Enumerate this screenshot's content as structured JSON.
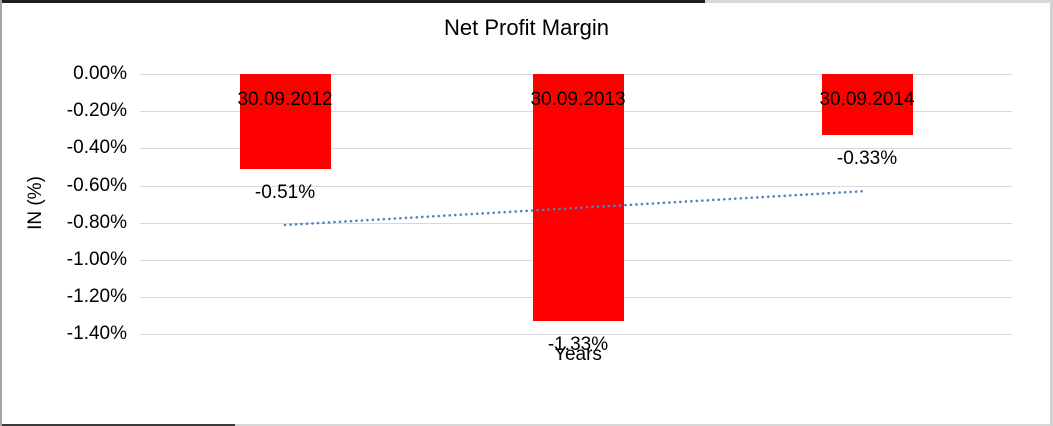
{
  "chart_data": {
    "type": "bar",
    "title": "Net Profit Margin",
    "xlabel": "Years",
    "ylabel": "IN (%)",
    "categories": [
      "30.09.2012",
      "30.09.2013",
      "30.09.2014"
    ],
    "values": [
      -0.51,
      -1.33,
      -0.33
    ],
    "data_labels": [
      "-0.51%",
      "-1.33%",
      "-0.33%"
    ],
    "y_tick_labels": [
      "0.00%",
      "-0.20%",
      "-0.40%",
      "-0.60%",
      "-0.80%",
      "-1.00%",
      "-1.20%",
      "-1.40%"
    ],
    "y_tick_values": [
      0,
      -0.2,
      -0.4,
      -0.6,
      -0.8,
      -1.0,
      -1.2,
      -1.4
    ],
    "ylim": [
      -1.4,
      0
    ],
    "grid": true,
    "legend": false,
    "bar_color": "#FF0000",
    "text_color": "#000000",
    "gridline_color": "#D9D9D9",
    "trendline": {
      "type": "linear",
      "style": "dotted",
      "color": "#4F81BD",
      "start_value": -0.81,
      "end_value": -0.63
    }
  }
}
